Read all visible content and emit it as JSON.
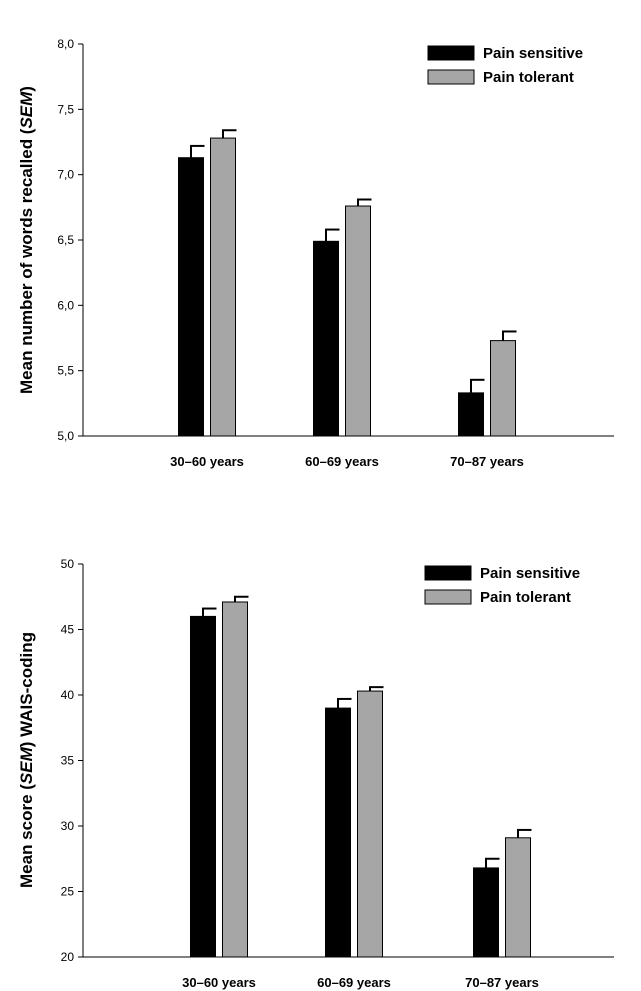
{
  "chart_data": [
    {
      "type": "bar",
      "categories": [
        "30–60 years",
        "60–69 years",
        "70–87 years"
      ],
      "ylabel_main": "Mean number of words recalled (",
      "ylabel_italic": "SEM",
      "ylabel_end": ")",
      "ylim": [
        5.0,
        8.0
      ],
      "yticks": [
        "5,0",
        "5,5",
        "6,0",
        "6,5",
        "7,0",
        "7,5",
        "8,0"
      ],
      "ytick_values": [
        5.0,
        5.5,
        6.0,
        6.5,
        7.0,
        7.5,
        8.0
      ],
      "legend_position": "top-right",
      "series": [
        {
          "name": "Pain sensitive",
          "color": "#000000",
          "values": [
            7.13,
            6.49,
            5.33
          ],
          "errors": [
            0.09,
            0.09,
            0.1
          ]
        },
        {
          "name": "Pain tolerant",
          "color": "#a6a6a6",
          "values": [
            7.28,
            6.76,
            5.73
          ],
          "errors": [
            0.06,
            0.05,
            0.07
          ]
        }
      ]
    },
    {
      "type": "bar",
      "categories": [
        "30–60 years",
        "60–69 years",
        "70–87 years"
      ],
      "ylabel_main": "Mean score (",
      "ylabel_italic": "SEM",
      "ylabel_end": ") WAIS-coding",
      "ylim": [
        20,
        50
      ],
      "yticks": [
        "20",
        "25",
        "30",
        "35",
        "40",
        "45",
        "50"
      ],
      "ytick_values": [
        20,
        25,
        30,
        35,
        40,
        45,
        50
      ],
      "legend_position": "top-right",
      "series": [
        {
          "name": "Pain sensitive",
          "color": "#000000",
          "values": [
            46.0,
            39.0,
            26.8
          ],
          "errors": [
            0.6,
            0.7,
            0.7
          ]
        },
        {
          "name": "Pain tolerant",
          "color": "#a6a6a6",
          "values": [
            47.1,
            40.3,
            29.1
          ],
          "errors": [
            0.4,
            0.3,
            0.6
          ]
        }
      ]
    }
  ]
}
